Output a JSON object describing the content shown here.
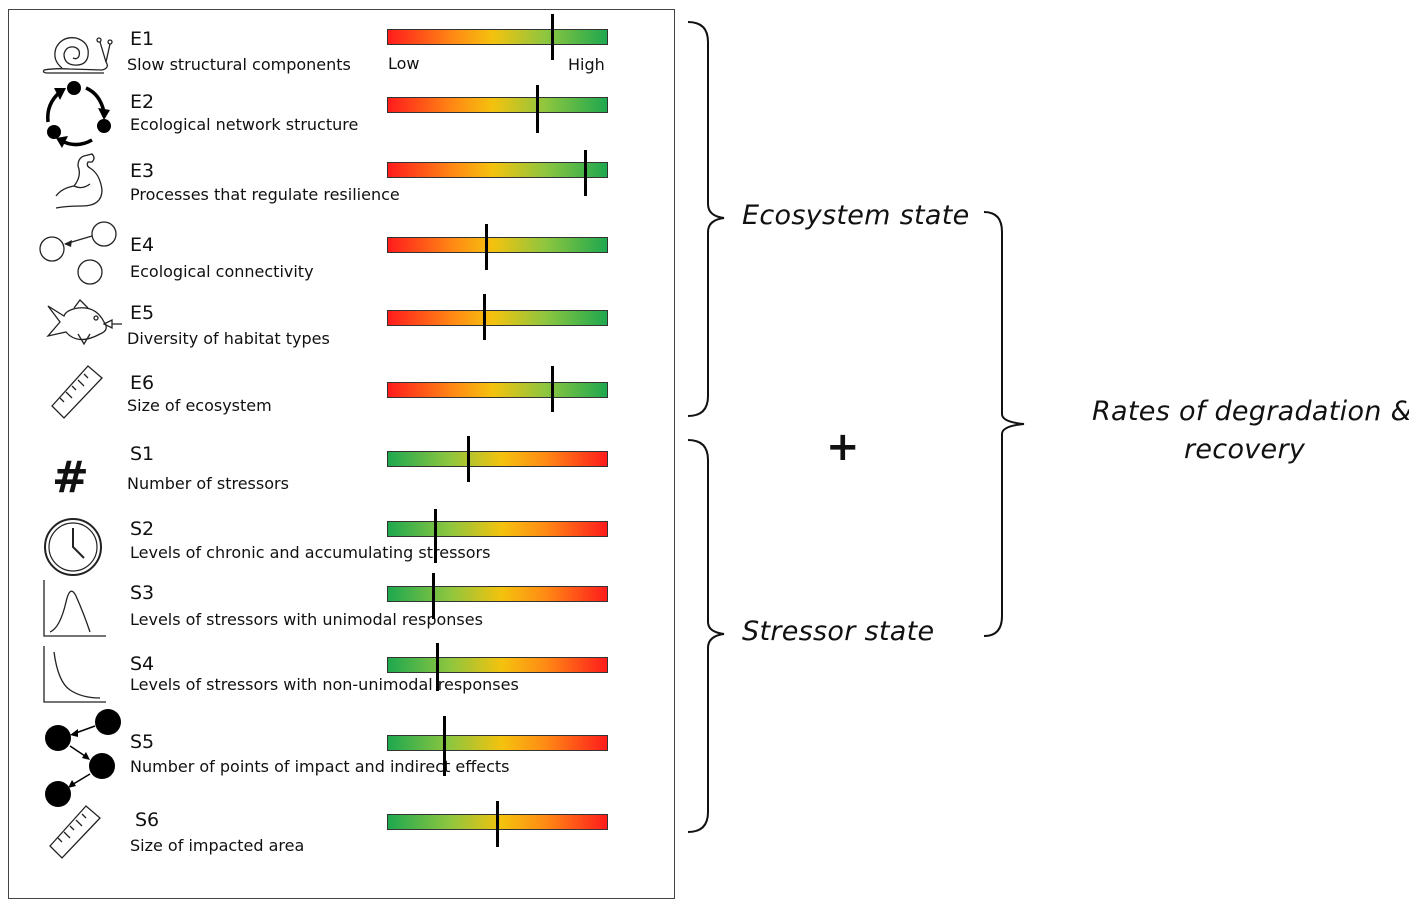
{
  "scale": {
    "low_label": "Low",
    "high_label": "High"
  },
  "rows": [
    {
      "code": "E1",
      "label": "Slow structural components",
      "group": "ecosystem",
      "level": 0.75,
      "icon": "snail-icon"
    },
    {
      "code": "E2",
      "label": "Ecological network structure",
      "group": "ecosystem",
      "level": 0.68,
      "icon": "cycle-network-icon"
    },
    {
      "code": "E3",
      "label": "Processes that regulate resilience",
      "group": "ecosystem",
      "level": 0.9,
      "icon": "flexed-arm-icon"
    },
    {
      "code": "E4",
      "label": "Ecological connectivity",
      "group": "ecosystem",
      "level": 0.45,
      "icon": "connected-circles-icon"
    },
    {
      "code": "E5",
      "label": "Diversity of habitat types",
      "group": "ecosystem",
      "level": 0.44,
      "icon": "fish-icon"
    },
    {
      "code": "E6",
      "label": "Size of ecosystem",
      "group": "ecosystem",
      "level": 0.75,
      "icon": "ruler-icon"
    },
    {
      "code": "S1",
      "label": "Number of stressors",
      "group": "stressor",
      "level": 0.37,
      "icon": "hash-icon"
    },
    {
      "code": "S2",
      "label": "Levels of chronic and accumulating stressors",
      "group": "stressor",
      "level": 0.22,
      "icon": "clock-icon"
    },
    {
      "code": "S3",
      "label": "Levels of stressors with unimodal responses",
      "group": "stressor",
      "level": 0.21,
      "icon": "unimodal-curve-icon"
    },
    {
      "code": "S4",
      "label": "Levels of stressors with non-unimodal responses",
      "group": "stressor",
      "level": 0.23,
      "icon": "decay-curve-icon"
    },
    {
      "code": "S5",
      "label": "Number of points of impact and indirect effects",
      "group": "stressor",
      "level": 0.26,
      "icon": "impact-network-icon"
    },
    {
      "code": "S6",
      "label": "Size of impacted area",
      "group": "stressor",
      "level": 0.5,
      "icon": "ruler-icon"
    }
  ],
  "groups": {
    "ecosystem": "Ecosystem state",
    "stressor": "Stressor state",
    "plus": "+",
    "outcome_line1": "Rates of degradation &",
    "outcome_line2": "recovery"
  },
  "colors": {
    "low_color": "#ff1c1c",
    "mid_color": "#f4c20e",
    "high_color": "#1fa84f"
  }
}
